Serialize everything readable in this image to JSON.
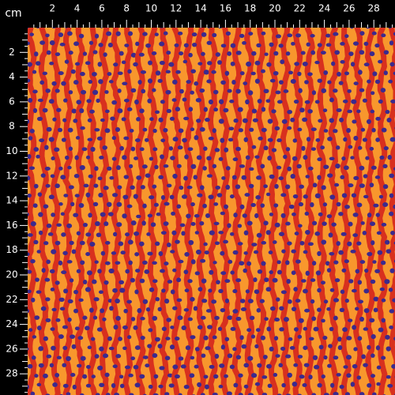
{
  "ruler": {
    "unit": "cm",
    "top_labels": [
      2,
      4,
      6,
      8,
      10,
      12,
      14,
      16,
      18,
      20,
      22,
      24,
      26,
      28
    ],
    "left_labels": [
      2,
      4,
      6,
      8,
      10,
      12,
      14,
      16,
      18,
      20,
      22,
      24,
      26,
      28
    ]
  }
}
